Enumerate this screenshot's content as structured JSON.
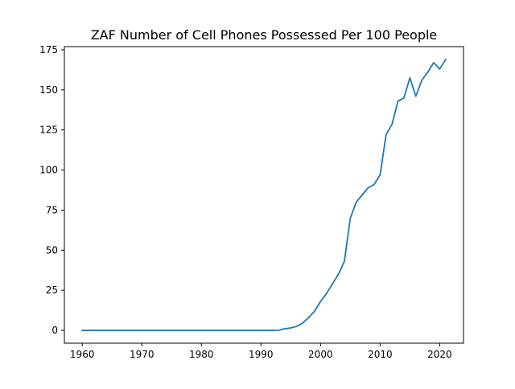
{
  "chart_data": {
    "type": "line",
    "title": "ZAF Number of Cell Phones Possessed Per 100 People",
    "xlabel": "",
    "ylabel": "",
    "xlim": [
      1957,
      2024
    ],
    "ylim": [
      -8,
      177
    ],
    "grid": false,
    "x_ticks": [
      1960,
      1970,
      1980,
      1990,
      2000,
      2010,
      2020
    ],
    "x_tick_labels": [
      "1960",
      "1970",
      "1980",
      "1990",
      "2000",
      "2010",
      "2020"
    ],
    "y_ticks": [
      0,
      25,
      50,
      75,
      100,
      125,
      150,
      175
    ],
    "y_tick_labels": [
      "0",
      "25",
      "50",
      "75",
      "100",
      "125",
      "150",
      "175"
    ],
    "colors": {
      "line": "#1f77b4",
      "axes": "#000000"
    },
    "series": [
      {
        "x": [
          1960,
          1961,
          1962,
          1963,
          1964,
          1965,
          1966,
          1967,
          1968,
          1969,
          1970,
          1971,
          1972,
          1973,
          1974,
          1975,
          1976,
          1977,
          1978,
          1979,
          1980,
          1981,
          1982,
          1983,
          1984,
          1985,
          1986,
          1987,
          1988,
          1989,
          1990,
          1991,
          1992,
          1993,
          1994,
          1995,
          1996,
          1997,
          1998,
          1999,
          2000,
          2001,
          2002,
          2003,
          2004,
          2005,
          2006,
          2007,
          2008,
          2009,
          2010,
          2011,
          2012,
          2013,
          2014,
          2015,
          2016,
          2017,
          2018,
          2019,
          2020,
          2021
        ],
        "values": [
          0,
          0,
          0,
          0,
          0,
          0,
          0,
          0,
          0,
          0,
          0,
          0,
          0,
          0,
          0,
          0,
          0,
          0,
          0,
          0,
          0,
          0,
          0,
          0,
          0,
          0,
          0,
          0,
          0,
          0,
          0,
          0,
          0,
          0.1,
          1,
          1.5,
          2.5,
          4.5,
          8,
          12,
          18,
          23,
          29,
          35,
          43,
          70,
          80,
          84.5,
          89,
          91,
          97,
          122,
          128.5,
          143,
          145,
          157.5,
          146,
          156,
          161,
          167,
          163,
          169
        ]
      }
    ]
  }
}
